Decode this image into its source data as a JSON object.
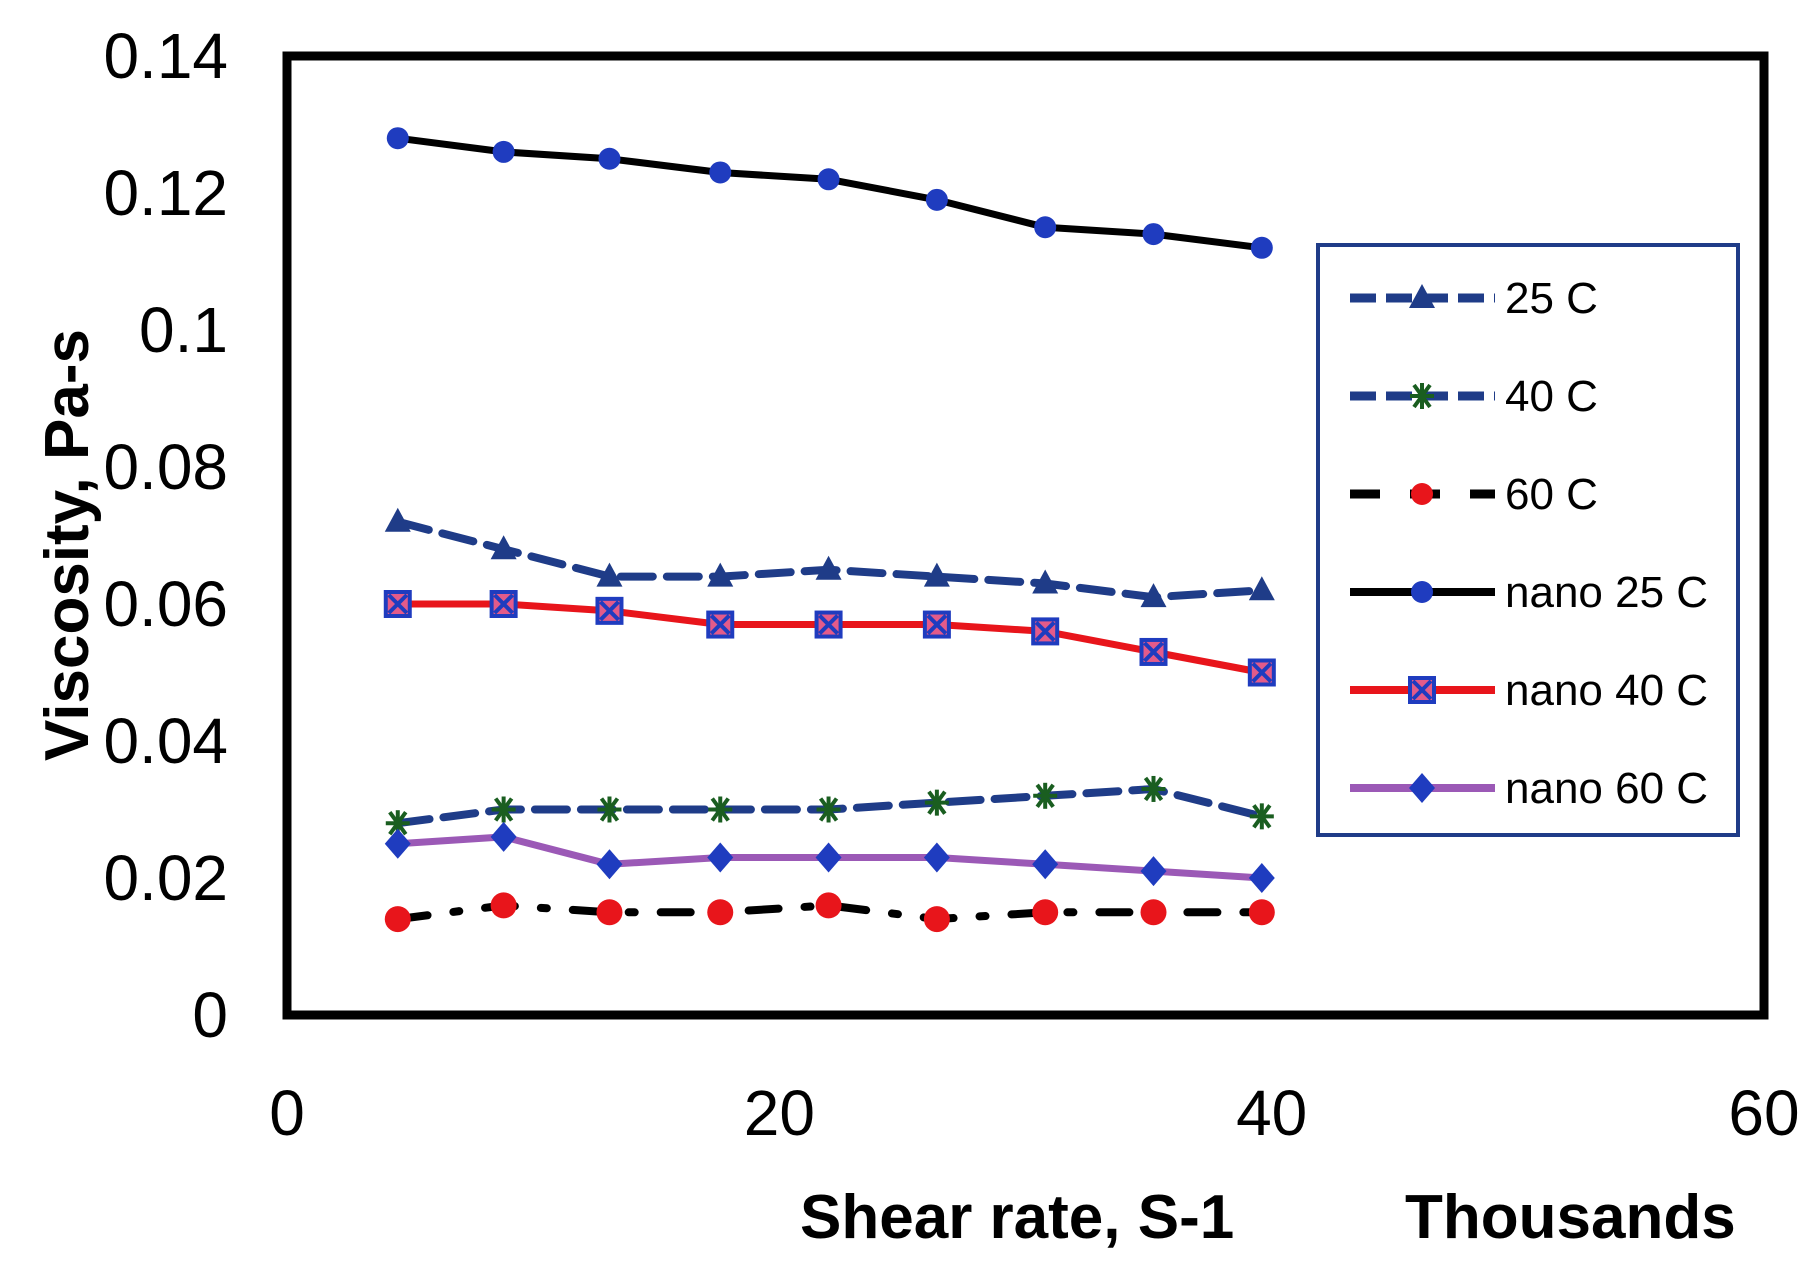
{
  "chart_data": {
    "type": "line",
    "title": "-",
    "xlabel": "Shear rate, S-1",
    "xunit_label": "Thousands",
    "ylabel": "Viscosity, Pa-s",
    "xlim": [
      0,
      60
    ],
    "ylim": [
      0,
      0.14
    ],
    "xticks": [
      "0",
      "20",
      "40",
      "60"
    ],
    "yticks": [
      "0",
      "0.02",
      "0.04",
      "0.06",
      "0.08",
      "0.1",
      "0.12",
      "0.14"
    ],
    "xtick_values": [
      0,
      20,
      40,
      60
    ],
    "ytick_values": [
      0,
      0.02,
      0.04,
      0.06,
      0.08,
      0.1,
      0.12,
      0.14
    ],
    "x": [
      4.5,
      8.8,
      13.1,
      17.6,
      22.0,
      26.4,
      30.8,
      35.2,
      39.6
    ],
    "legend_position": "right",
    "series": [
      {
        "name": "25 C",
        "color": "#1f3c88",
        "style": "dashed",
        "marker": "triangle",
        "marker_color": "#1f3c88",
        "values": [
          0.072,
          0.068,
          0.064,
          0.064,
          0.065,
          0.064,
          0.063,
          0.061,
          0.062
        ]
      },
      {
        "name": "40 C",
        "color": "#1f3c88",
        "style": "dashed",
        "marker": "asterisk",
        "marker_color": "#1a5e20",
        "values": [
          0.028,
          0.03,
          0.03,
          0.03,
          0.03,
          0.031,
          0.032,
          0.033,
          0.029
        ]
      },
      {
        "name": "60 C",
        "color": "#000000",
        "style": "dashdot",
        "marker": "circle",
        "marker_color": "#e8151b",
        "values": [
          0.014,
          0.016,
          0.015,
          0.015,
          0.016,
          0.014,
          0.015,
          0.015,
          0.015
        ]
      },
      {
        "name": "nano 25 C",
        "color": "#000000",
        "style": "solid",
        "marker": "circle",
        "marker_color": "#1f3cbf",
        "values": [
          0.128,
          0.126,
          0.125,
          0.123,
          0.122,
          0.119,
          0.115,
          0.114,
          0.112
        ]
      },
      {
        "name": "nano 40 C",
        "color": "#e8151b",
        "style": "solid",
        "marker": "square-x",
        "marker_color": "#1f3cbf",
        "values": [
          0.06,
          0.06,
          0.059,
          0.057,
          0.057,
          0.057,
          0.056,
          0.053,
          0.05
        ]
      },
      {
        "name": "nano 60 C",
        "color": "#9b59b6",
        "style": "solid",
        "marker": "diamond",
        "marker_color": "#1f3cbf",
        "values": [
          0.025,
          0.026,
          0.022,
          0.023,
          0.023,
          0.023,
          0.022,
          0.021,
          0.02
        ]
      }
    ]
  }
}
